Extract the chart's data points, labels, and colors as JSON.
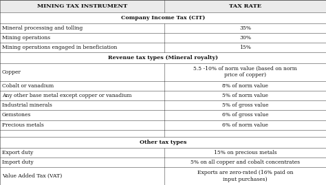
{
  "header": [
    "MINING TAX INSTRUMENT",
    "TAX RATE"
  ],
  "sections": [
    {
      "section_title": "Company Income Tax (CIT)",
      "rows": [
        [
          "Mineral processing and tolling",
          "35%"
        ],
        [
          "Mining operations",
          "30%"
        ],
        [
          "Mining operations engaged in beneficiation",
          "15%"
        ]
      ]
    },
    {
      "section_title": "Revenue tax types (Mineral royalty)",
      "rows": [
        [
          "Copper",
          "5.5 -10% of norm value (based on norm\nprice of copper)"
        ],
        [
          "Cobalt or vanadium",
          "8% of norm value"
        ],
        [
          "Any other base metal except copper or vanadium",
          "5% of norm value"
        ],
        [
          "Industrial minerals",
          "5% of gross value"
        ],
        [
          "Gemstones",
          "6% of gross value"
        ],
        [
          "Precious metals",
          "6% of norm value"
        ]
      ]
    },
    {
      "section_title": "Other tax types",
      "rows": [
        [
          "Export duty",
          "15% on precious metals"
        ],
        [
          "Import duty",
          "5% on all copper and cobalt concentrates"
        ],
        [
          "Value Added Tax (VAT)",
          "Exports are zero-rated (16% paid on\ninput purchases)"
        ]
      ]
    }
  ],
  "border_color": "#444444",
  "text_color": "#111111",
  "font_size": 5.5,
  "header_font_size": 6.0,
  "col_split": 0.505,
  "row_heights": {
    "header": 14,
    "section": 12,
    "single": 11,
    "double": 20,
    "blank": 8
  }
}
